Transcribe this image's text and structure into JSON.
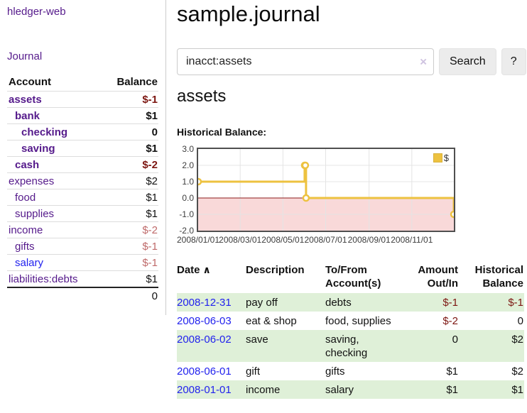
{
  "sidebar": {
    "brand": "hledger-web",
    "journal_label": "Journal",
    "accounts": {
      "header_account": "Account",
      "header_balance": "Balance",
      "rows": [
        {
          "name": "assets",
          "depth": 0,
          "bold": true,
          "balance": "$-1",
          "balance_tone": "neg-strong"
        },
        {
          "name": "bank",
          "depth": 1,
          "bold": true,
          "balance": "$1",
          "balance_tone": ""
        },
        {
          "name": "checking",
          "depth": 2,
          "bold": true,
          "balance": "0",
          "balance_tone": ""
        },
        {
          "name": "saving",
          "depth": 2,
          "bold": true,
          "balance": "$1",
          "balance_tone": ""
        },
        {
          "name": "cash",
          "depth": 1,
          "bold": true,
          "balance": "$-2",
          "balance_tone": "neg-strong"
        },
        {
          "name": "expenses",
          "depth": 0,
          "bold": false,
          "balance": "$2",
          "balance_tone": ""
        },
        {
          "name": "food",
          "depth": 1,
          "bold": false,
          "balance": "$1",
          "balance_tone": ""
        },
        {
          "name": "supplies",
          "depth": 1,
          "bold": false,
          "balance": "$1",
          "balance_tone": ""
        },
        {
          "name": "income",
          "depth": 0,
          "bold": false,
          "balance": "$-2",
          "balance_tone": "neg-soft"
        },
        {
          "name": "gifts",
          "depth": 1,
          "bold": false,
          "balance": "$-1",
          "balance_tone": "neg-soft"
        },
        {
          "name": "salary",
          "depth": 1,
          "bold": false,
          "unvisited": true,
          "balance": "$-1",
          "balance_tone": "neg-soft"
        },
        {
          "name": "liabilities:debts",
          "depth": 0,
          "bold": false,
          "balance": "$1",
          "balance_tone": ""
        }
      ],
      "total": "0"
    }
  },
  "main": {
    "title": "sample.journal",
    "search": {
      "value": "inacct:assets",
      "clear_icon": "×",
      "button_label": "Search",
      "help_label": "?"
    },
    "account_heading": "assets",
    "chart_label": "Historical Balance:"
  },
  "chart_data": {
    "type": "line",
    "step": true,
    "title": "Historical Balance:",
    "series": [
      {
        "name": "$",
        "color": "#edc240",
        "points": [
          [
            "2008-01-01",
            1
          ],
          [
            "2008-06-01",
            2
          ],
          [
            "2008-06-02",
            2
          ],
          [
            "2008-06-03",
            0
          ],
          [
            "2008-12-31",
            -1
          ]
        ]
      }
    ],
    "x_range": [
      "2008-01-01",
      "2008-12-31"
    ],
    "x_ticks": [
      "2008/01/01",
      "2008/03/01",
      "2008/05/01",
      "2008/07/01",
      "2008/09/01",
      "2008/11/01"
    ],
    "y_ticks": [
      "3.0",
      "2.0",
      "1.0",
      "0.0",
      "-1.0",
      "-2.0"
    ],
    "ylim": [
      -2,
      3
    ],
    "grid": true,
    "negative_fill": "#f9d9d9",
    "zero_line_color": "#8b1a1a",
    "legend_position": "top-right"
  },
  "register": {
    "sort_icon": "∧",
    "headers": {
      "date": "Date",
      "description": "Description",
      "tofrom": "To/From Account(s)",
      "amount": "Amount Out/In",
      "balance": "Historical Balance"
    },
    "rows": [
      {
        "date": "2008-12-31",
        "description": "pay off",
        "accounts": "debts",
        "amount": "$-1",
        "amount_neg": true,
        "balance": "$-1",
        "balance_neg": true
      },
      {
        "date": "2008-06-03",
        "description": "eat & shop",
        "accounts": "food, supplies",
        "amount": "$-2",
        "amount_neg": true,
        "balance": "0",
        "balance_neg": false
      },
      {
        "date": "2008-06-02",
        "description": "save",
        "accounts": "saving, checking",
        "amount": "0",
        "amount_neg": false,
        "balance": "$2",
        "balance_neg": false
      },
      {
        "date": "2008-06-01",
        "description": "gift",
        "accounts": "gifts",
        "amount": "$1",
        "amount_neg": false,
        "balance": "$2",
        "balance_neg": false
      },
      {
        "date": "2008-01-01",
        "description": "income",
        "accounts": "salary",
        "amount": "$1",
        "amount_neg": false,
        "balance": "$1",
        "balance_neg": false
      }
    ]
  }
}
